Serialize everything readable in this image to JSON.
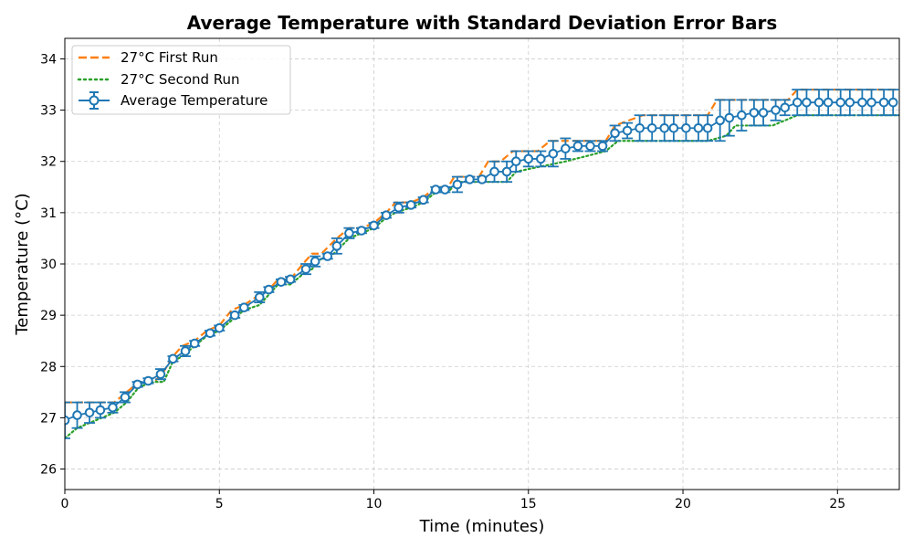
{
  "chart_data": {
    "type": "line",
    "title": "Average Temperature with Standard Deviation Error Bars",
    "xlabel": "Time (minutes)",
    "ylabel": "Temperature (°C)",
    "xlim": [
      0,
      27
    ],
    "ylim": [
      25.6,
      34.4
    ],
    "xticks": [
      0,
      5,
      10,
      15,
      20,
      25
    ],
    "yticks": [
      26,
      27,
      28,
      29,
      30,
      31,
      32,
      33,
      34
    ],
    "grid": true,
    "legend_position": "top-left",
    "colors": {
      "first_run": "#ff7f0e",
      "second_run": "#2ca02c",
      "average": "#1f77b4"
    },
    "series": [
      {
        "name": "27°C First Run",
        "style": "dashed",
        "x": [
          0,
          1.6,
          2.0,
          2.4,
          2.9,
          3.2,
          3.5,
          3.8,
          4.2,
          4.6,
          5.0,
          5.4,
          5.8,
          6.3,
          6.6,
          6.9,
          7.3,
          7.7,
          8.0,
          8.3,
          8.8,
          9.2,
          9.6,
          10.0,
          10.4,
          10.7,
          11.2,
          11.6,
          12.0,
          12.4,
          12.6,
          13.4,
          13.7,
          14.1,
          14.5,
          15.3,
          15.7,
          17.5,
          17.8,
          18.7,
          20.8,
          21.1,
          23.4,
          23.7,
          27
        ],
        "values": [
          27.3,
          27.3,
          27.5,
          27.7,
          27.7,
          27.9,
          28.2,
          28.4,
          28.5,
          28.7,
          28.8,
          29.1,
          29.2,
          29.4,
          29.5,
          29.7,
          29.7,
          30.0,
          30.2,
          30.2,
          30.5,
          30.7,
          30.7,
          30.8,
          31.0,
          31.2,
          31.2,
          31.3,
          31.5,
          31.5,
          31.7,
          31.7,
          32.0,
          32.0,
          32.2,
          32.2,
          32.4,
          32.4,
          32.7,
          32.9,
          32.9,
          33.2,
          33.2,
          33.4,
          33.4
        ]
      },
      {
        "name": "27°C Second Run",
        "style": "dotted",
        "x": [
          0,
          0.4,
          0.8,
          1.2,
          1.6,
          2.0,
          2.4,
          2.9,
          3.2,
          3.5,
          3.8,
          4.2,
          4.6,
          5.0,
          5.4,
          5.8,
          6.3,
          6.6,
          6.9,
          7.3,
          7.7,
          8.0,
          8.3,
          8.7,
          9.2,
          9.6,
          10.0,
          10.4,
          10.7,
          11.2,
          11.6,
          12.0,
          12.4,
          12.7,
          13.6,
          14.3,
          14.6,
          15.4,
          16.2,
          17.5,
          17.9,
          20.8,
          21.4,
          21.7,
          22.9,
          23.3,
          23.7,
          27
        ],
        "values": [
          26.6,
          26.8,
          26.9,
          27.0,
          27.1,
          27.3,
          27.6,
          27.7,
          27.7,
          28.1,
          28.2,
          28.4,
          28.6,
          28.7,
          28.9,
          29.1,
          29.2,
          29.4,
          29.6,
          29.6,
          29.8,
          29.9,
          30.1,
          30.2,
          30.5,
          30.6,
          30.7,
          30.9,
          31.0,
          31.1,
          31.2,
          31.4,
          31.4,
          31.6,
          31.6,
          31.6,
          31.8,
          31.9,
          32.0,
          32.2,
          32.4,
          32.4,
          32.5,
          32.7,
          32.7,
          32.8,
          32.9,
          32.9
        ]
      },
      {
        "name": "Average Temperature",
        "style": "errorbar",
        "x": [
          0,
          0.4,
          0.8,
          1.15,
          1.55,
          1.95,
          2.35,
          2.7,
          3.1,
          3.5,
          3.9,
          4.2,
          4.7,
          5.0,
          5.5,
          5.8,
          6.3,
          6.6,
          7.0,
          7.3,
          7.8,
          8.1,
          8.5,
          8.8,
          9.2,
          9.6,
          10.0,
          10.4,
          10.8,
          11.2,
          11.6,
          12.0,
          12.3,
          12.7,
          13.1,
          13.5,
          13.9,
          14.3,
          14.6,
          15.0,
          15.4,
          15.8,
          16.2,
          16.6,
          17.0,
          17.4,
          17.8,
          18.2,
          18.6,
          19.0,
          19.4,
          19.7,
          20.1,
          20.5,
          20.8,
          21.2,
          21.5,
          21.9,
          22.3,
          22.6,
          23.0,
          23.3,
          23.7,
          24.0,
          24.4,
          24.7,
          25.1,
          25.4,
          25.8,
          26.1,
          26.5,
          26.8
        ],
        "values": [
          26.95,
          27.05,
          27.1,
          27.15,
          27.2,
          27.4,
          27.65,
          27.72,
          27.85,
          28.15,
          28.3,
          28.45,
          28.65,
          28.75,
          29.0,
          29.15,
          29.35,
          29.5,
          29.65,
          29.7,
          29.9,
          30.05,
          30.15,
          30.35,
          30.6,
          30.65,
          30.75,
          30.95,
          31.1,
          31.15,
          31.25,
          31.45,
          31.45,
          31.55,
          31.65,
          31.65,
          31.8,
          31.8,
          32.0,
          32.05,
          32.05,
          32.15,
          32.25,
          32.3,
          32.3,
          32.3,
          32.55,
          32.6,
          32.65,
          32.65,
          32.65,
          32.65,
          32.65,
          32.65,
          32.65,
          32.8,
          32.85,
          32.9,
          32.95,
          32.95,
          33.0,
          33.05,
          33.15,
          33.15,
          33.15,
          33.15,
          33.15,
          33.15,
          33.15,
          33.15,
          33.15,
          33.15
        ],
        "std": [
          0.35,
          0.25,
          0.2,
          0.15,
          0.1,
          0.1,
          0.05,
          0.05,
          0.1,
          0.05,
          0.1,
          0.05,
          0.05,
          0.05,
          0.05,
          0.05,
          0.1,
          0.05,
          0.05,
          0.05,
          0.1,
          0.1,
          0.05,
          0.15,
          0.1,
          0.05,
          0.05,
          0.05,
          0.1,
          0.05,
          0.05,
          0.05,
          0.05,
          0.15,
          0.05,
          0.05,
          0.2,
          0.2,
          0.2,
          0.15,
          0.15,
          0.25,
          0.2,
          0.1,
          0.1,
          0.1,
          0.15,
          0.15,
          0.25,
          0.25,
          0.25,
          0.25,
          0.25,
          0.25,
          0.25,
          0.4,
          0.35,
          0.3,
          0.25,
          0.25,
          0.2,
          0.15,
          0.25,
          0.25,
          0.25,
          0.25,
          0.25,
          0.25,
          0.25,
          0.25,
          0.25,
          0.25
        ]
      }
    ]
  }
}
